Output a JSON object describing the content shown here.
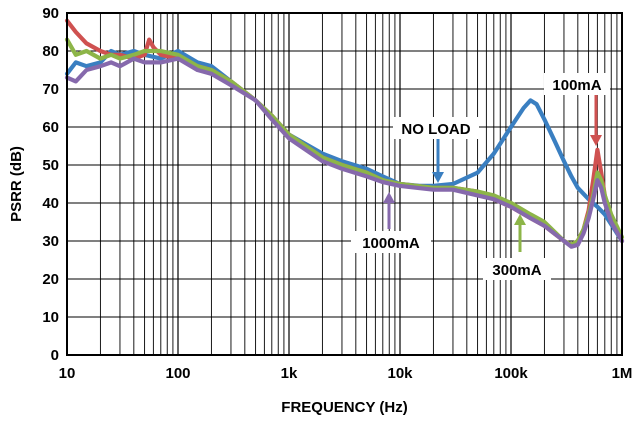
{
  "chart_data": {
    "type": "line",
    "xlabel": "FREQUENCY (Hz)",
    "ylabel": "PSRR (dB)",
    "xscale": "log",
    "xlim": [
      10,
      1000000
    ],
    "ylim": [
      0,
      90
    ],
    "grid": true,
    "x_tick_labels": [
      "10",
      "100",
      "1k",
      "10k",
      "100k",
      "1M"
    ],
    "x_tick_values": [
      10,
      100,
      1000,
      10000,
      100000,
      1000000
    ],
    "y_tick_values": [
      0,
      10,
      20,
      30,
      40,
      50,
      60,
      70,
      80,
      90
    ],
    "series": [
      {
        "name": "NO LOAD",
        "color": "#3a7fc1",
        "x": [
          10,
          12,
          15,
          20,
          25,
          30,
          40,
          50,
          70,
          100,
          150,
          200,
          300,
          500,
          700,
          1000,
          2000,
          3000,
          5000,
          7000,
          10000,
          15000,
          20000,
          30000,
          50000,
          70000,
          100000,
          130000,
          150000,
          170000,
          200000,
          250000,
          300000,
          350000,
          400000,
          500000,
          600000,
          700000,
          1000000
        ],
        "y": [
          74,
          77,
          76,
          77,
          80,
          79,
          80,
          79,
          78,
          80,
          77,
          76,
          72,
          67,
          63,
          58,
          53,
          51,
          49,
          47,
          45,
          44.5,
          44.5,
          45,
          48,
          53,
          60,
          65,
          67,
          66,
          62,
          56,
          51,
          47,
          44,
          41,
          39,
          37,
          30
        ]
      },
      {
        "name": "100mA",
        "color": "#cf5150",
        "x": [
          10,
          12,
          15,
          20,
          25,
          30,
          40,
          50,
          55,
          60,
          70,
          100,
          150,
          200,
          300,
          500,
          700,
          1000,
          2000,
          3000,
          5000,
          7000,
          10000,
          20000,
          30000,
          50000,
          70000,
          100000,
          150000,
          200000,
          300000,
          350000,
          400000,
          450000,
          500000,
          550000,
          600000,
          650000,
          700000,
          800000,
          1000000
        ],
        "y": [
          88,
          85,
          82,
          80,
          79,
          79,
          78,
          79,
          83,
          81,
          79,
          78,
          76,
          75,
          72,
          67,
          63,
          58,
          52,
          50,
          48,
          46,
          45,
          44,
          44,
          43,
          41,
          39,
          36,
          34,
          30,
          29,
          30,
          33,
          38,
          46,
          54,
          48,
          42,
          36,
          30
        ]
      },
      {
        "name": "300mA",
        "color": "#8db548",
        "x": [
          10,
          12,
          15,
          20,
          25,
          30,
          40,
          50,
          70,
          100,
          150,
          200,
          300,
          500,
          700,
          1000,
          2000,
          3000,
          5000,
          7000,
          10000,
          20000,
          30000,
          50000,
          70000,
          100000,
          150000,
          200000,
          300000,
          350000,
          400000,
          450000,
          500000,
          550000,
          600000,
          650000,
          700000,
          800000,
          1000000
        ],
        "y": [
          83,
          79,
          80,
          78,
          79,
          78,
          79,
          80,
          80,
          79,
          76,
          75,
          72,
          67,
          63,
          58,
          52,
          50,
          48,
          46,
          45,
          44,
          44,
          43,
          42,
          40,
          37,
          35,
          30,
          29,
          30,
          33,
          37,
          42,
          48,
          46,
          42,
          37,
          31
        ]
      },
      {
        "name": "1000mA",
        "color": "#8669ac",
        "x": [
          10,
          12,
          15,
          20,
          25,
          30,
          40,
          50,
          70,
          100,
          150,
          200,
          300,
          500,
          700,
          1000,
          2000,
          3000,
          5000,
          7000,
          10000,
          20000,
          30000,
          50000,
          70000,
          100000,
          150000,
          200000,
          300000,
          350000,
          400000,
          450000,
          500000,
          550000,
          600000,
          650000,
          700000,
          800000,
          1000000
        ],
        "y": [
          73,
          72,
          75,
          76,
          77,
          76,
          78,
          77,
          77,
          78,
          75,
          74,
          71,
          67,
          62,
          57,
          51,
          49,
          47,
          45.5,
          44.5,
          43.5,
          43.5,
          42,
          41,
          39,
          36,
          34,
          30,
          28.5,
          29,
          32,
          36,
          41,
          46,
          44,
          40,
          35,
          30
        ]
      }
    ],
    "annotations": [
      {
        "text": "NO LOAD",
        "x": 22000,
        "y": 45
      },
      {
        "text": "100mA",
        "x": 600000,
        "y": 57
      },
      {
        "text": "300mA",
        "x": 120000,
        "y": 39
      },
      {
        "text": "1000mA",
        "x": 8000,
        "y": 43
      }
    ]
  }
}
